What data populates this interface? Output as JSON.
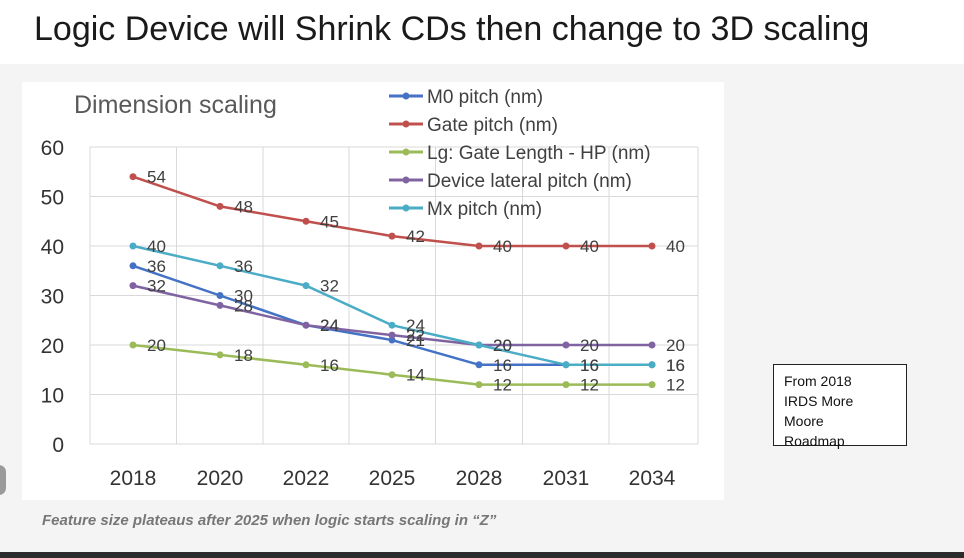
{
  "slide": {
    "title": "Logic Device will Shrink CDs then change to 3D scaling",
    "caption": "Feature size plateaus after 2025 when logic starts scaling in “Z”",
    "source_box": [
      "From 2018",
      "IRDS More",
      "Moore",
      "Roadmap"
    ]
  },
  "chart_data": {
    "type": "line",
    "title": "Dimension scaling",
    "xlabel": "",
    "ylabel": "",
    "categories": [
      "2018",
      "2020",
      "2022",
      "2025",
      "2028",
      "2031",
      "2034"
    ],
    "ylim": [
      0,
      60
    ],
    "yticks": [
      0,
      10,
      20,
      30,
      40,
      50,
      60
    ],
    "grid": true,
    "legend_position": "top-right",
    "series": [
      {
        "name": "M0 pitch (nm)",
        "color": "#4472c4",
        "values": [
          36,
          30,
          24,
          21,
          16,
          16,
          16
        ],
        "labels": [
          "36",
          "30",
          "24",
          "21",
          "16",
          "16",
          "16"
        ]
      },
      {
        "name": "Gate pitch (nm)",
        "color": "#c0504d",
        "values": [
          54,
          48,
          45,
          42,
          40,
          40,
          40
        ],
        "labels": [
          "54",
          "48",
          "45",
          "42",
          "40",
          "40",
          "40"
        ]
      },
      {
        "name": "Lg: Gate Length - HP (nm)",
        "color": "#9bbb59",
        "values": [
          20,
          18,
          16,
          14,
          12,
          12,
          12
        ],
        "labels": [
          "20",
          "18",
          "16",
          "14",
          "12",
          "12",
          "12"
        ]
      },
      {
        "name": "Device lateral pitch (nm)",
        "color": "#8064a2",
        "values": [
          32,
          28,
          24,
          22,
          20,
          20,
          20
        ],
        "labels": [
          "32",
          "28",
          "24",
          "22",
          "20",
          "20",
          "20"
        ]
      },
      {
        "name": "Mx pitch (nm)",
        "color": "#4bacc6",
        "values": [
          40,
          36,
          32,
          24,
          20,
          16,
          16
        ],
        "labels": [
          "40",
          "36",
          "32",
          "24",
          "20",
          "16",
          "16"
        ]
      }
    ]
  }
}
